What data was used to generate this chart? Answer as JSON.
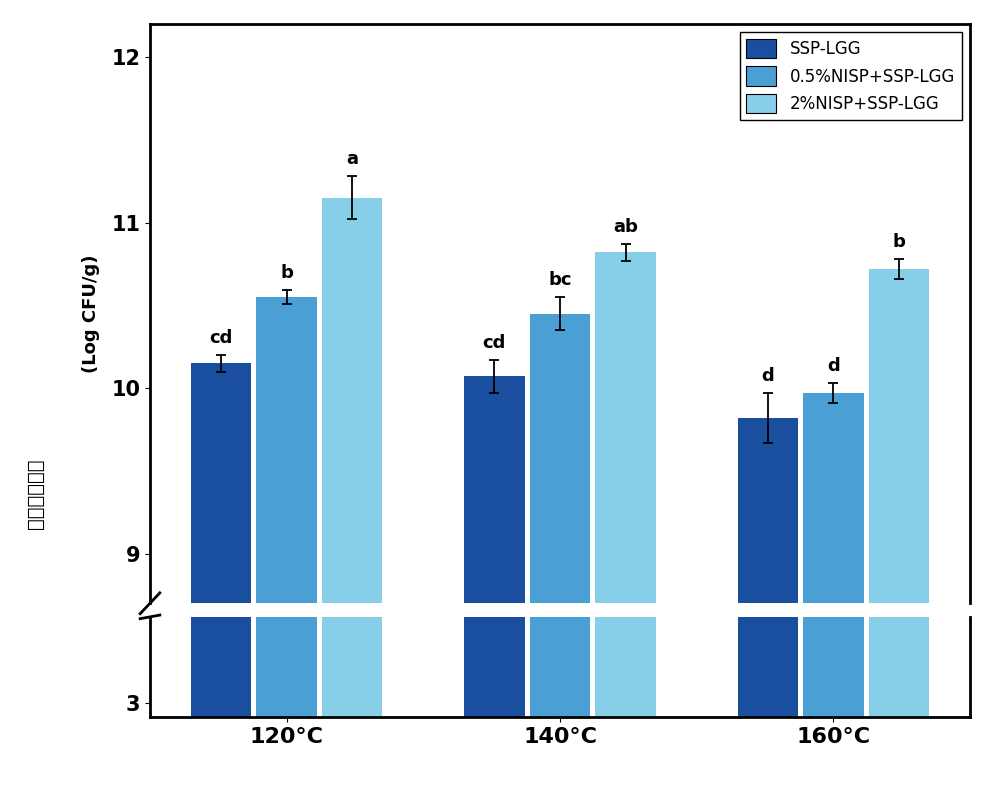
{
  "groups": [
    "120°C",
    "140°C",
    "160°C"
  ],
  "series": [
    "SSP-LGG",
    "0.5%NISP+SSP-LGG",
    "2%NISP+SSP-LGG"
  ],
  "colors": [
    "#1a4f9f",
    "#4a9fd4",
    "#87cee8"
  ],
  "values": [
    [
      10.15,
      10.07,
      9.82
    ],
    [
      10.55,
      10.45,
      9.97
    ],
    [
      11.15,
      10.82,
      10.72
    ]
  ],
  "errors": [
    [
      0.05,
      0.1,
      0.15
    ],
    [
      0.04,
      0.1,
      0.06
    ],
    [
      0.13,
      0.05,
      0.06
    ]
  ],
  "labels": [
    [
      "cd",
      "cd",
      "d"
    ],
    [
      "b",
      "bc",
      "d"
    ],
    [
      "a",
      "ab",
      "b"
    ]
  ],
  "ylabel_top": "(Log CFU/g)",
  "ylabel_bottom": "益生菌存活数",
  "yticks_upper": [
    9,
    10,
    11,
    12
  ],
  "upper_ylim": [
    8.7,
    12.2
  ],
  "lower_ylim": [
    2.85,
    3.9
  ],
  "bar_width": 0.24,
  "legend_labels": [
    "SSP-LGG",
    "0.5%NISP+SSP-LGG",
    "2%NISP+SSP-LGG"
  ],
  "bg_color": "white",
  "spine_color": "black",
  "spine_lw": 2.0
}
